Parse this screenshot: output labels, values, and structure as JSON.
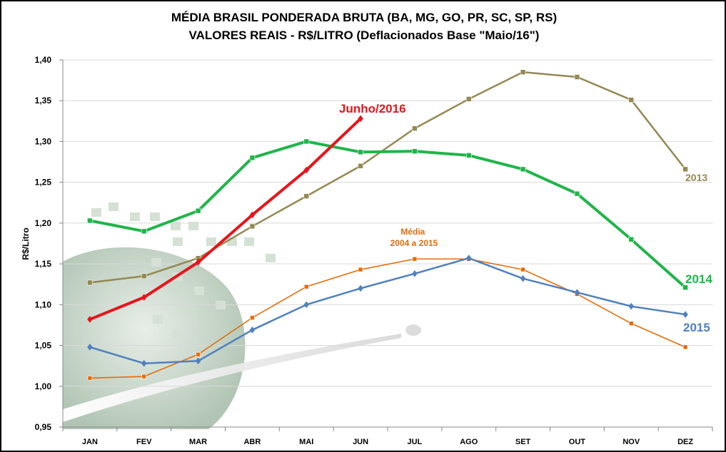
{
  "chart_data": {
    "type": "line",
    "title": "MÉDIA BRASIL PONDERADA  BRUTA (BA, MG, GO, PR, SC, SP, RS)",
    "subtitle": "VALORES REAIS - R$/LITRO (Deflacionados  Base  \"Maio/16\")",
    "ylabel": "R$/Litro",
    "xlabel": "",
    "ylim": [
      0.95,
      1.4
    ],
    "yticks": [
      "0,95",
      "1,00",
      "1,05",
      "1,10",
      "1,15",
      "1,20",
      "1,25",
      "1,30",
      "1,35",
      "1,40"
    ],
    "categories": [
      "JAN",
      "FEV",
      "MAR",
      "ABR",
      "MAI",
      "JUN",
      "JUL",
      "AGO",
      "SET",
      "OUT",
      "NOV",
      "DEZ"
    ],
    "grid": true,
    "legend": "inline labels",
    "series": [
      {
        "name": "2013",
        "color": "#938953",
        "marker": "square",
        "values": [
          1.127,
          1.135,
          1.157,
          1.196,
          1.233,
          1.27,
          1.316,
          1.352,
          1.385,
          1.379,
          1.351,
          1.266
        ]
      },
      {
        "name": "Média 2004 a 2015",
        "color": "#e46c0a",
        "marker": "square",
        "values": [
          1.01,
          1.012,
          1.039,
          1.084,
          1.122,
          1.143,
          1.156,
          1.156,
          1.143,
          1.113,
          1.077,
          1.048
        ]
      },
      {
        "name": "2015",
        "color": "#4f81bd",
        "marker": "diamond",
        "values": [
          1.048,
          1.028,
          1.031,
          1.069,
          1.1,
          1.12,
          1.138,
          1.157,
          1.132,
          1.115,
          1.098,
          1.088
        ]
      },
      {
        "name": "2014",
        "color": "#1fb54a",
        "marker": "square",
        "values": [
          1.203,
          1.19,
          1.215,
          1.28,
          1.3,
          1.287,
          1.288,
          1.283,
          1.266,
          1.236,
          1.18,
          1.121
        ]
      },
      {
        "name": "Junho/2016",
        "color": "#e8141b",
        "marker": "diamond",
        "values": [
          1.082,
          1.109,
          1.152,
          1.21,
          1.265,
          1.328,
          null,
          null,
          null,
          null,
          null,
          null
        ]
      }
    ]
  }
}
